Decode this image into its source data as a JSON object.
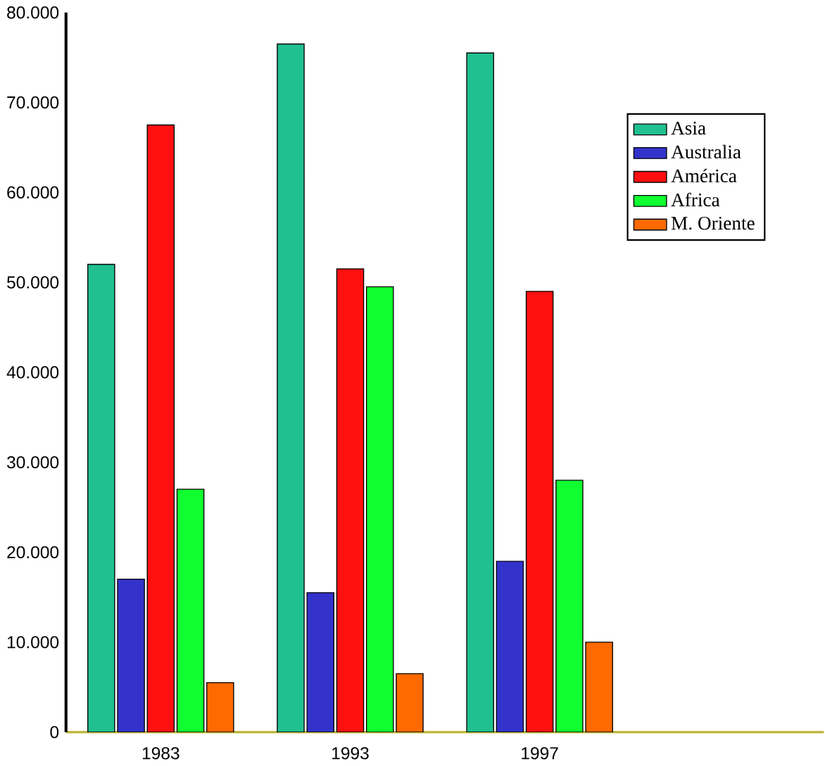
{
  "chart_data": {
    "type": "bar",
    "categories": [
      "1983",
      "1993",
      "1997",
      null
    ],
    "series": [
      {
        "name": "Asia",
        "color": "#20c090",
        "values": [
          52000,
          76500,
          75500,
          null
        ]
      },
      {
        "name": "Australia",
        "color": "#3333cc",
        "values": [
          17000,
          15500,
          19000,
          null
        ]
      },
      {
        "name": "América",
        "color": "#ff1010",
        "values": [
          67500,
          51500,
          49000,
          null
        ]
      },
      {
        "name": "Africa",
        "color": "#10ff30",
        "values": [
          27000,
          49500,
          28000,
          null
        ]
      },
      {
        "name": "M. Oriente",
        "color": "#ff6a00",
        "values": [
          5500,
          6500,
          10000,
          null
        ]
      }
    ],
    "ylim": [
      0,
      80000
    ],
    "yticks": [
      0,
      {
        "value": 10000,
        "label": "10.000"
      },
      {
        "value": 20000,
        "label": "20.000"
      },
      {
        "value": 30000,
        "label": "30.000"
      },
      {
        "value": 40000,
        "label": "40.000"
      },
      {
        "value": 50000,
        "label": "50.000"
      },
      {
        "value": 60000,
        "label": "60.000"
      },
      {
        "value": 70000,
        "label": "70.000"
      },
      {
        "value": 80000,
        "label": "80.000"
      }
    ],
    "grid": false,
    "legend": "right"
  }
}
